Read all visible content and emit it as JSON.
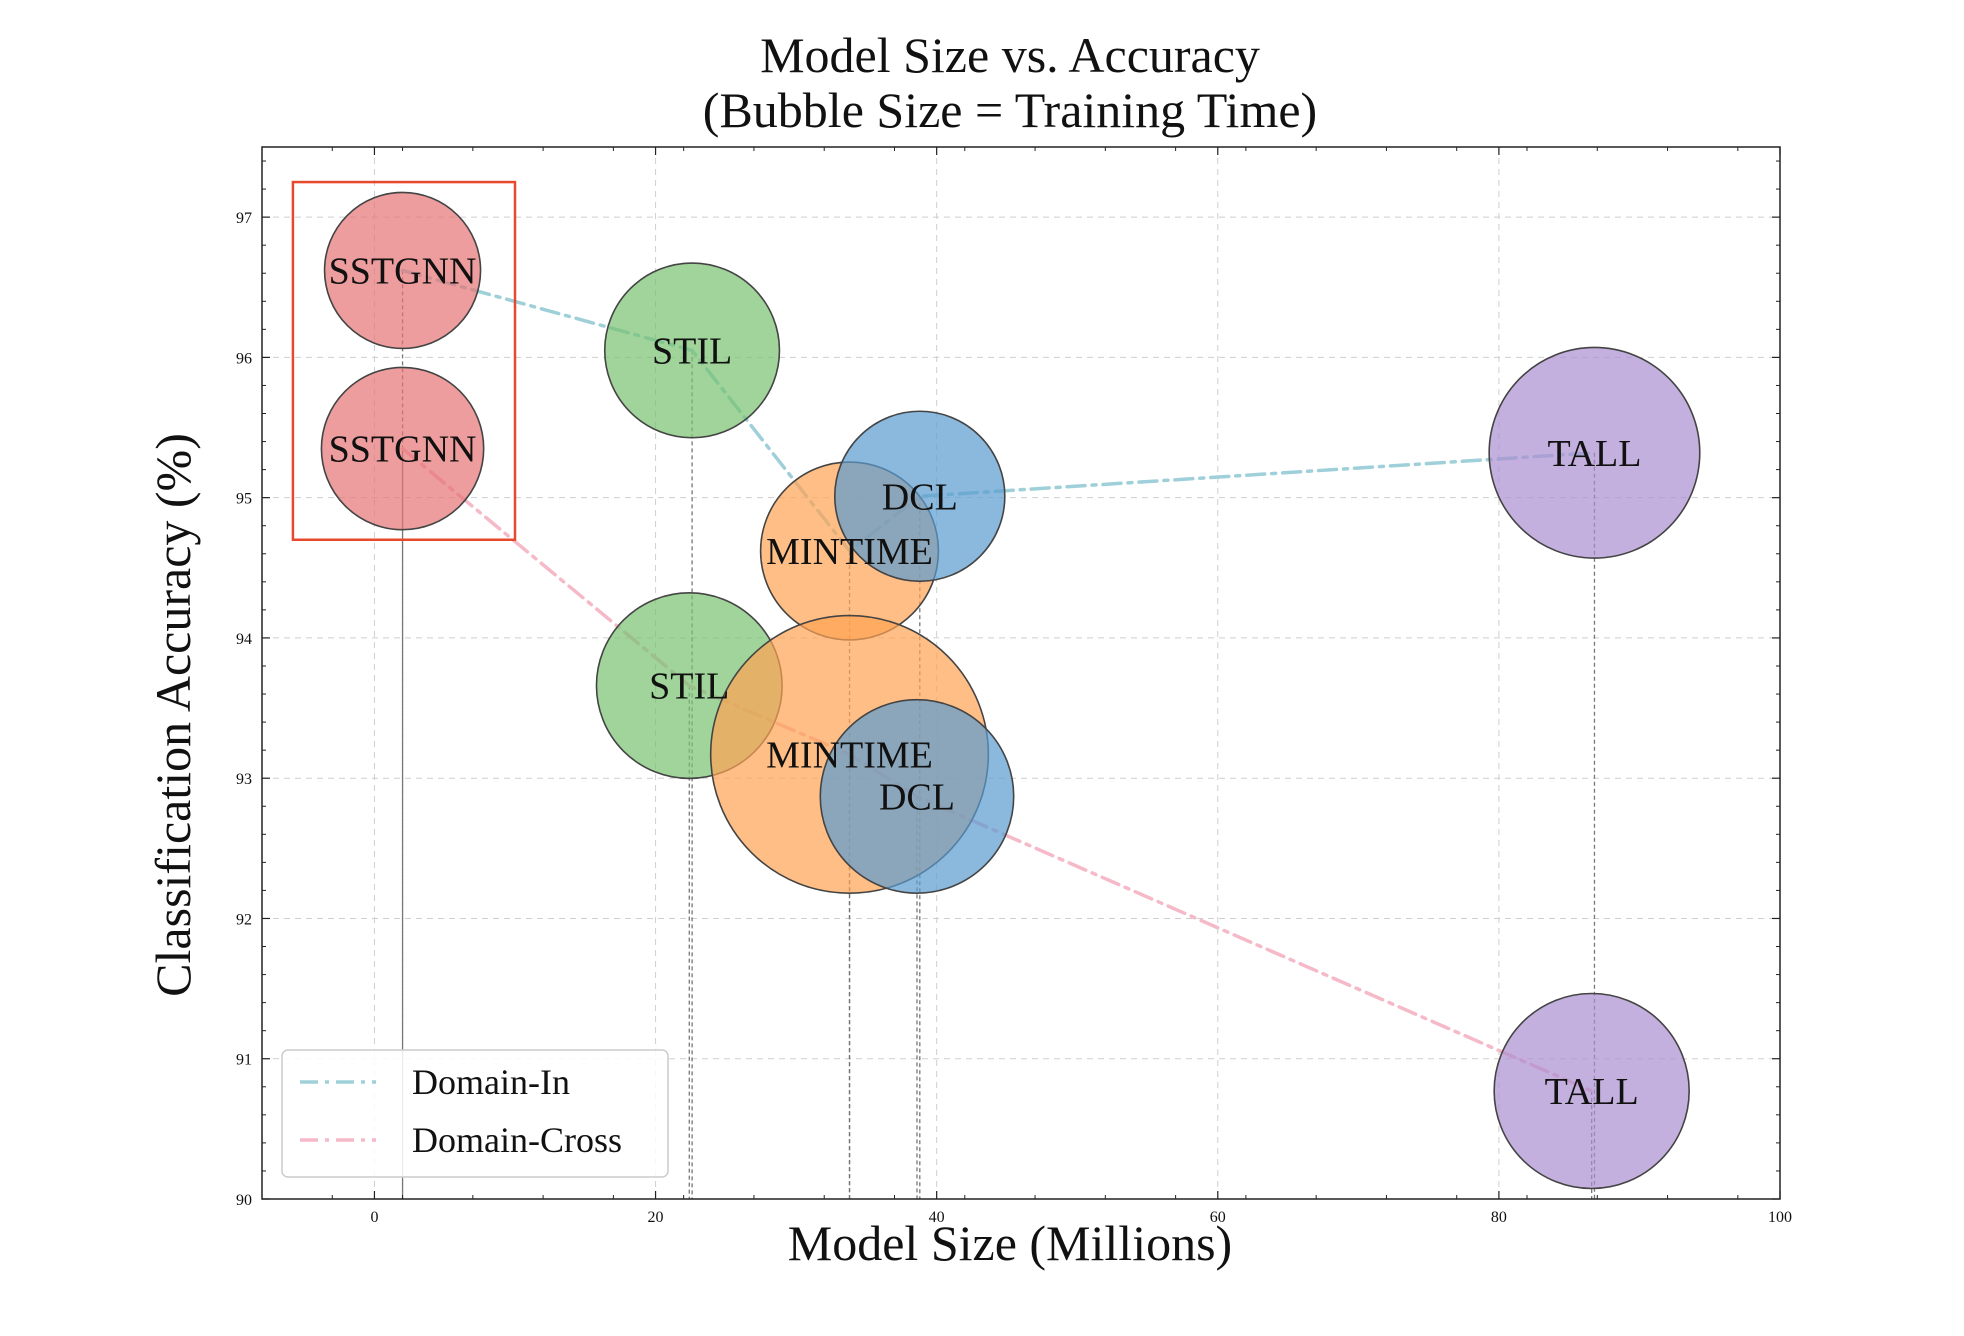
{
  "chart_data": {
    "type": "scatter",
    "title_lines": [
      "Model Size vs. Accuracy",
      "(Bubble Size = Training Time)"
    ],
    "xlabel": "Model Size (Millions)",
    "ylabel": "Classification Accuracy (%)",
    "xlim": [
      -8,
      100
    ],
    "ylim": [
      90,
      97.5
    ],
    "xticks": [
      0,
      20,
      40,
      60,
      80,
      100
    ],
    "yticks": [
      90,
      91,
      92,
      93,
      94,
      95,
      96,
      97
    ],
    "grid": true,
    "grid_style": "dashed",
    "legend_position": "bottom-left",
    "highlight_box": {
      "x_range": [
        -5.8,
        10
      ],
      "y_range": [
        94.7,
        97.25
      ],
      "color": "#e8482e"
    },
    "series": [
      {
        "name": "Domain-In",
        "line_color": "#9fd0d9",
        "line_style": "dash-dot",
        "points": [
          {
            "label": "SSTGNN",
            "x": 2,
            "y": 96.62,
            "bubble": 1.0,
            "color": "#e57373"
          },
          {
            "label": "STIL",
            "x": 22.6,
            "y": 96.05,
            "bubble": 1.12,
            "color": "#77c26f"
          },
          {
            "label": "MINTIME",
            "x": 33.8,
            "y": 94.62,
            "bubble": 1.14,
            "color": "#ffa352"
          },
          {
            "label": "DCL",
            "x": 38.8,
            "y": 95.01,
            "bubble": 1.09,
            "color": "#5a9bd0"
          },
          {
            "label": "TALL",
            "x": 86.8,
            "y": 95.32,
            "bubble": 1.35,
            "color": "#ab8ed0"
          }
        ]
      },
      {
        "name": "Domain-Cross",
        "line_color": "#f5b9c8",
        "line_style": "dash-dot",
        "points": [
          {
            "label": "SSTGNN",
            "x": 2,
            "y": 95.35,
            "bubble": 1.04,
            "color": "#e57373"
          },
          {
            "label": "STIL",
            "x": 22.4,
            "y": 93.66,
            "bubble": 1.19,
            "color": "#77c26f"
          },
          {
            "label": "MINTIME",
            "x": 33.8,
            "y": 93.17,
            "bubble": 1.78,
            "color": "#ffa352"
          },
          {
            "label": "DCL",
            "x": 38.6,
            "y": 92.87,
            "bubble": 1.24,
            "color": "#5a9bd0"
          },
          {
            "label": "TALL",
            "x": 86.6,
            "y": 90.77,
            "bubble": 1.25,
            "color": "#ab8ed0"
          }
        ]
      }
    ]
  }
}
